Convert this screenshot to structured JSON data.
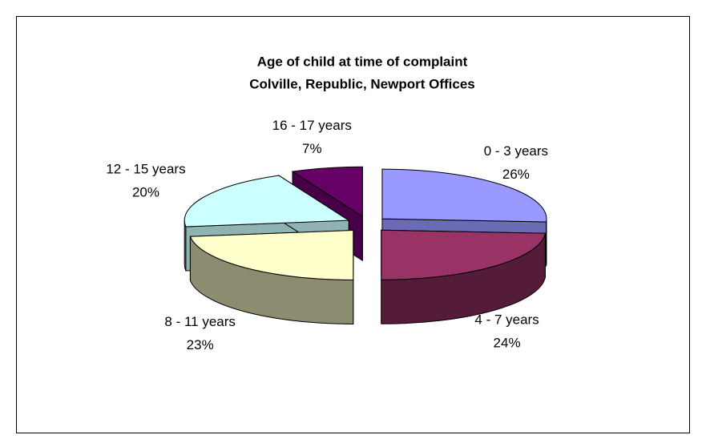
{
  "chart_data": {
    "type": "pie3d",
    "title": [
      "Age of child at time of complaint",
      "Colville, Republic, Newport Offices"
    ],
    "categories": [
      "0 - 3 years",
      "4 - 7 years",
      "8 - 11 years",
      "12 - 15 years",
      "16 - 17 years"
    ],
    "values": [
      26,
      24,
      23,
      20,
      7
    ],
    "value_labels": [
      "26%",
      "24%",
      "23%",
      "20%",
      "7%"
    ],
    "colors": [
      "#9999ff",
      "#993366",
      "#ffffcc",
      "#ccffff",
      "#660066"
    ]
  }
}
